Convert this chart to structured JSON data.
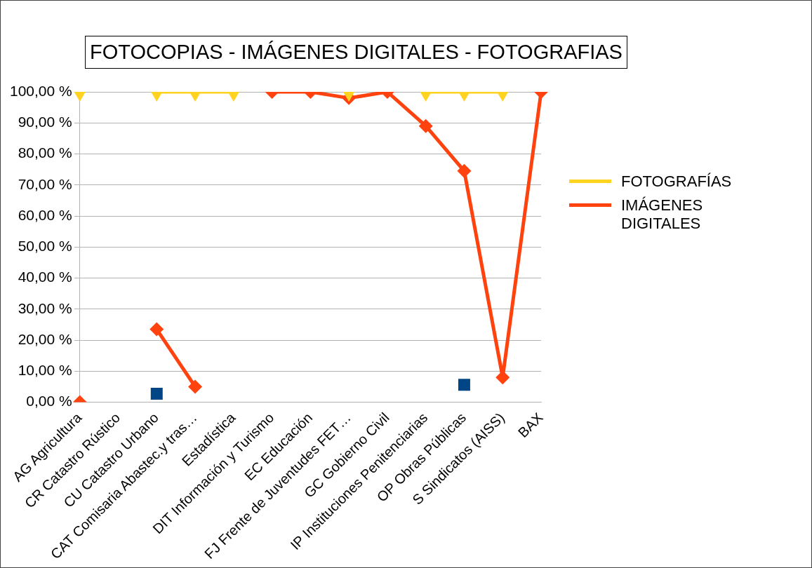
{
  "chart_data": {
    "type": "line",
    "title": "FOTOCOPIAS - IMÁGENES DIGITALES - FOTOGRAFIAS",
    "categories": [
      "AG Agricultura",
      "CR Catastro Rústico",
      "CU Catastro Urbano",
      "CAT Comisaria Abastec.y tras…",
      "Estadística",
      "DIT Información y Turismo",
      "EC Educación",
      "FJ Frente de Juventudes FET…",
      "GC Gobierno Civil",
      "IP Instituciones Penitenciarias",
      "OP Obras Públicas",
      "S Sindicatos (AISS)",
      "BAX"
    ],
    "series": [
      {
        "name": "FOTOGRAFÍAS",
        "color": "#ffd320",
        "marker": "triangle",
        "values": [
          100,
          null,
          100,
          100,
          100,
          null,
          null,
          100,
          null,
          100,
          100,
          100,
          null
        ]
      },
      {
        "name": "IMÁGENES DIGITALES",
        "color": "#ff420e",
        "marker": "diamond",
        "values": [
          0,
          null,
          23.5,
          5,
          null,
          100,
          100,
          98,
          100,
          89,
          74.5,
          8,
          100
        ]
      },
      {
        "type": "scatter",
        "color": "#004586",
        "marker": "square",
        "values": [
          null,
          null,
          2.7,
          null,
          null,
          null,
          null,
          null,
          null,
          null,
          5.6,
          null,
          null
        ]
      }
    ],
    "ylim": [
      0,
      100
    ],
    "yticks": [
      {
        "value": 0,
        "label": "0,00 %"
      },
      {
        "value": 10,
        "label": "10,00 %"
      },
      {
        "value": 20,
        "label": "20,00 %"
      },
      {
        "value": 30,
        "label": "30,00 %"
      },
      {
        "value": 40,
        "label": "40,00 %"
      },
      {
        "value": 50,
        "label": "50,00 %"
      },
      {
        "value": 60,
        "label": "60,00 %"
      },
      {
        "value": 70,
        "label": "70,00 %"
      },
      {
        "value": 80,
        "label": "80,00 %"
      },
      {
        "value": 90,
        "label": "90,00 %"
      },
      {
        "value": 100,
        "label": "100,00 %"
      }
    ],
    "grid": "y",
    "legend": "right",
    "line_style": "solid"
  }
}
